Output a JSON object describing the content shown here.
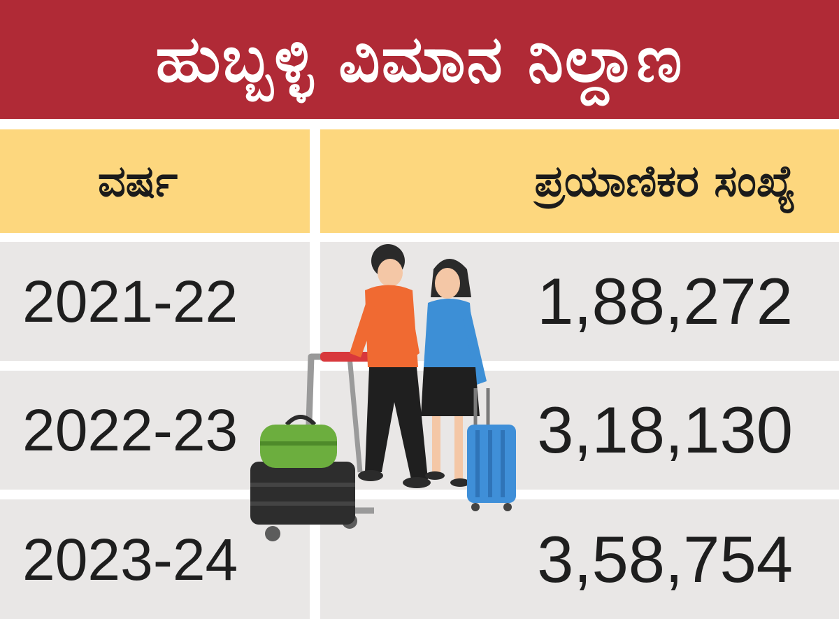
{
  "title": "ಹುಬ್ಬಳ್ಳಿ ವಿಮಾನ ನಿಲ್ದಾಣ",
  "table": {
    "headers": {
      "year": "ವರ್ಷ",
      "passengers": "ಪ್ರಯಾಣಿಕರ ಸಂಖ್ಯೆ"
    },
    "rows": [
      {
        "year": "2021-22",
        "passengers": "1,88,272"
      },
      {
        "year": "2022-23",
        "passengers": "3,18,130"
      },
      {
        "year": "2023-24",
        "passengers": "3,58,754"
      }
    ]
  },
  "colors": {
    "banner": "#b02a36",
    "header": "#fdd77e",
    "row": "#e9e7e6"
  },
  "illustration": {
    "icons": [
      "traveler-couple-icon",
      "luggage-trolley-icon",
      "suitcase-icon",
      "duffel-bag-icon"
    ]
  }
}
